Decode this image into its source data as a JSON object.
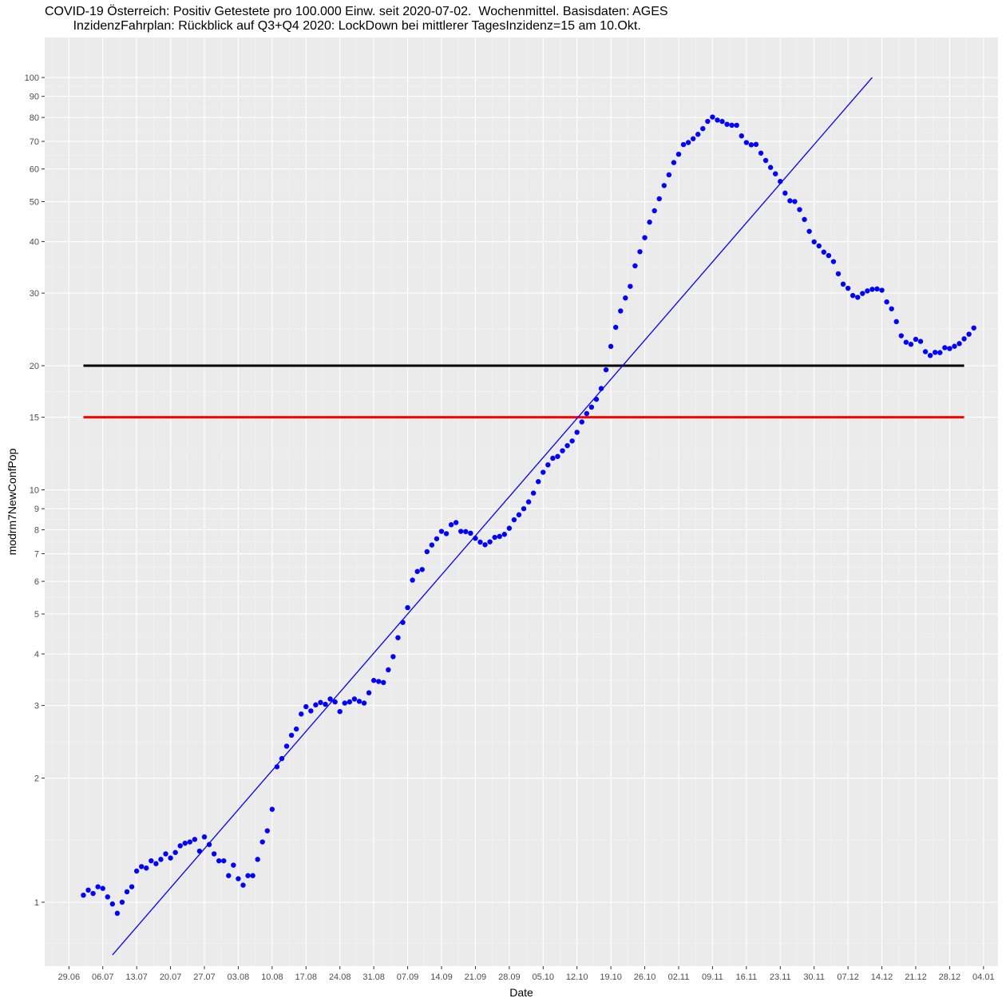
{
  "header": {
    "title_line1": "COVID-19 Österreich: Positiv Getestete pro 100.000 Einw. seit 2020-07-02.  Wochenmittel. Basisdaten: AGES",
    "title_line2": "        InzidenzFahrplan: Rückblick auf Q3+Q4 2020: LockDown bei mittlerer TagesInzidenz=15 am 10.Okt."
  },
  "chart_data": {
    "type": "scatter",
    "xlabel": "Date",
    "ylabel": "modrm7NewConfPop",
    "y_scale": "log",
    "ylim": [
      0.7,
      125
    ],
    "xlim": [
      "2020-06-24",
      "2021-01-07"
    ],
    "grid": true,
    "x_ticks": [
      {
        "date": "2020-06-29",
        "label": "29.06"
      },
      {
        "date": "2020-07-06",
        "label": "06.07"
      },
      {
        "date": "2020-07-13",
        "label": "13.07"
      },
      {
        "date": "2020-07-20",
        "label": "20.07"
      },
      {
        "date": "2020-07-27",
        "label": "27.07"
      },
      {
        "date": "2020-08-03",
        "label": "03.08"
      },
      {
        "date": "2020-08-10",
        "label": "10.08"
      },
      {
        "date": "2020-08-17",
        "label": "17.08"
      },
      {
        "date": "2020-08-24",
        "label": "24.08"
      },
      {
        "date": "2020-08-31",
        "label": "31.08"
      },
      {
        "date": "2020-09-07",
        "label": "07.09"
      },
      {
        "date": "2020-09-14",
        "label": "14.09"
      },
      {
        "date": "2020-09-21",
        "label": "21.09"
      },
      {
        "date": "2020-09-28",
        "label": "28.09"
      },
      {
        "date": "2020-10-05",
        "label": "05.10"
      },
      {
        "date": "2020-10-12",
        "label": "12.10"
      },
      {
        "date": "2020-10-19",
        "label": "19.10"
      },
      {
        "date": "2020-10-26",
        "label": "26.10"
      },
      {
        "date": "2020-11-02",
        "label": "02.11"
      },
      {
        "date": "2020-11-09",
        "label": "09.11"
      },
      {
        "date": "2020-11-16",
        "label": "16.11"
      },
      {
        "date": "2020-11-23",
        "label": "23.11"
      },
      {
        "date": "2020-11-30",
        "label": "30.11"
      },
      {
        "date": "2020-12-07",
        "label": "07.12"
      },
      {
        "date": "2020-12-14",
        "label": "14.12"
      },
      {
        "date": "2020-12-21",
        "label": "21.12"
      },
      {
        "date": "2020-12-28",
        "label": "28.12"
      },
      {
        "date": "2021-01-04",
        "label": "04.01"
      }
    ],
    "y_ticks": [
      1,
      2,
      3,
      4,
      5,
      6,
      7,
      8,
      9,
      10,
      15,
      20,
      30,
      40,
      50,
      60,
      70,
      80,
      90,
      100
    ],
    "start_date": "2020-07-02",
    "series": [
      {
        "color": "#0000ff",
        "values": [
          1.04,
          1.07,
          1.05,
          1.09,
          1.08,
          1.03,
          0.99,
          0.94,
          1.0,
          1.06,
          1.09,
          1.19,
          1.22,
          1.21,
          1.26,
          1.24,
          1.27,
          1.31,
          1.28,
          1.32,
          1.37,
          1.39,
          1.4,
          1.42,
          1.33,
          1.44,
          1.38,
          1.31,
          1.26,
          1.26,
          1.16,
          1.23,
          1.14,
          1.1,
          1.16,
          1.16,
          1.27,
          1.4,
          1.49,
          1.68,
          2.13,
          2.23,
          2.39,
          2.54,
          2.63,
          2.86,
          2.98,
          2.91,
          3.01,
          3.05,
          3.02,
          3.11,
          3.06,
          2.9,
          3.04,
          3.06,
          3.11,
          3.07,
          3.04,
          3.22,
          3.45,
          3.43,
          3.41,
          3.66,
          3.94,
          4.38,
          4.77,
          5.18,
          6.04,
          6.34,
          6.41,
          7.08,
          7.35,
          7.61,
          7.93,
          7.83,
          8.23,
          8.33,
          7.93,
          7.92,
          7.85,
          7.63,
          7.47,
          7.36,
          7.48,
          7.67,
          7.71,
          7.8,
          8.07,
          8.46,
          8.7,
          9.0,
          9.35,
          9.82,
          10.47,
          11.03,
          11.5,
          11.93,
          12.05,
          12.44,
          12.8,
          13.14,
          13.79,
          14.61,
          15.31,
          15.87,
          16.58,
          17.61,
          19.55,
          22.28,
          24.78,
          27.15,
          29.19,
          31.15,
          34.93,
          37.8,
          40.88,
          44.59,
          47.51,
          50.8,
          54.69,
          58.07,
          62.19,
          65.14,
          68.76,
          69.55,
          71.03,
          72.81,
          75.16,
          78.26,
          80.19,
          78.83,
          78.24,
          77.0,
          76.61,
          76.58,
          72.17,
          69.54,
          68.68,
          68.82,
          65.55,
          62.91,
          60.51,
          58.4,
          55.97,
          52.43,
          50.23,
          50.03,
          47.82,
          45.26,
          42.35,
          39.94,
          39.04,
          37.72,
          37.0,
          35.77,
          33.42,
          31.54,
          30.82,
          29.6,
          29.3,
          29.94,
          30.37,
          30.64,
          30.71,
          30.48,
          28.56,
          27.48,
          25.58,
          23.64,
          22.8,
          22.54,
          23.18,
          22.91,
          21.63,
          21.18,
          21.55,
          21.52,
          22.12,
          22.01,
          22.29,
          22.63,
          23.24,
          23.85,
          24.69
        ]
      }
    ],
    "trend_line": {
      "color": "#0000ff",
      "from": {
        "date": "2020-07-08",
        "value": 0.745
      },
      "to": {
        "date": "2020-12-12",
        "value": 100
      }
    },
    "hlines": [
      {
        "value": 20,
        "color": "#000000",
        "from": "2020-07-02",
        "to": "2020-12-31"
      },
      {
        "value": 15,
        "color": "#ff0000",
        "from": "2020-07-02",
        "to": "2020-12-31"
      }
    ]
  }
}
